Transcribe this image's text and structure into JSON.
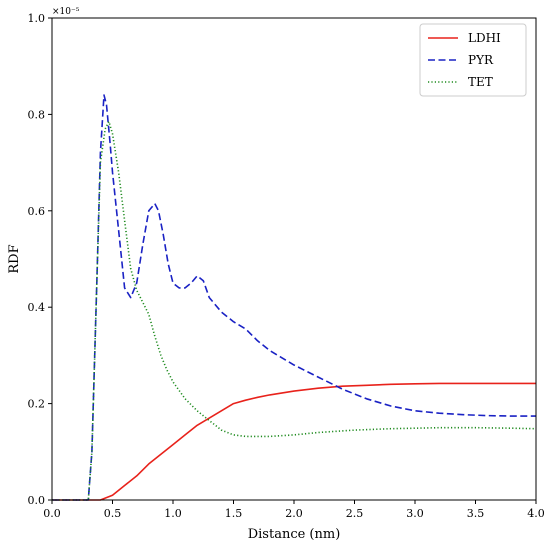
{
  "chart_data": {
    "type": "line",
    "xlabel": "Distance (nm)",
    "ylabel": "RDF",
    "y_multiplier": "×10⁻⁵",
    "xlim": [
      0,
      4.0
    ],
    "ylim": [
      0,
      1.0
    ],
    "xticks": [
      "0.0",
      "0.5",
      "1.0",
      "1.5",
      "2.0",
      "2.5",
      "3.0",
      "3.5",
      "4.0"
    ],
    "yticks": [
      "0.0",
      "0.2",
      "0.4",
      "0.6",
      "0.8",
      "1.0"
    ],
    "legend_position": "top-right",
    "grid": false,
    "series": [
      {
        "name": "LDHI",
        "color": "#e8221b",
        "style": "solid",
        "x": [
          0.0,
          0.3,
          0.4,
          0.5,
          0.6,
          0.7,
          0.8,
          0.9,
          1.0,
          1.1,
          1.2,
          1.3,
          1.4,
          1.5,
          1.6,
          1.7,
          1.8,
          2.0,
          2.2,
          2.4,
          2.6,
          2.8,
          3.0,
          3.2,
          3.4,
          3.6,
          3.8,
          4.0
        ],
        "y": [
          0.0,
          0.0,
          0.0,
          0.01,
          0.03,
          0.05,
          0.075,
          0.095,
          0.115,
          0.135,
          0.155,
          0.17,
          0.185,
          0.2,
          0.207,
          0.213,
          0.218,
          0.226,
          0.232,
          0.236,
          0.238,
          0.24,
          0.241,
          0.242,
          0.242,
          0.242,
          0.242,
          0.242
        ]
      },
      {
        "name": "PYR",
        "color": "#1a22c4",
        "style": "dashed",
        "x": [
          0.0,
          0.3,
          0.33,
          0.37,
          0.4,
          0.43,
          0.45,
          0.48,
          0.5,
          0.55,
          0.6,
          0.65,
          0.7,
          0.75,
          0.8,
          0.85,
          0.88,
          0.92,
          0.96,
          1.0,
          1.05,
          1.1,
          1.15,
          1.2,
          1.25,
          1.3,
          1.4,
          1.5,
          1.6,
          1.7,
          1.8,
          1.9,
          2.0,
          2.2,
          2.4,
          2.6,
          2.8,
          3.0,
          3.2,
          3.4,
          3.6,
          3.8,
          4.0
        ],
        "y": [
          0.0,
          0.0,
          0.1,
          0.45,
          0.72,
          0.84,
          0.82,
          0.74,
          0.68,
          0.56,
          0.44,
          0.42,
          0.45,
          0.53,
          0.6,
          0.615,
          0.6,
          0.55,
          0.49,
          0.45,
          0.44,
          0.44,
          0.45,
          0.465,
          0.455,
          0.42,
          0.39,
          0.37,
          0.355,
          0.33,
          0.31,
          0.295,
          0.28,
          0.255,
          0.23,
          0.21,
          0.195,
          0.185,
          0.18,
          0.177,
          0.175,
          0.174,
          0.174
        ]
      },
      {
        "name": "TET",
        "color": "#1d8a1d",
        "style": "dotted",
        "x": [
          0.0,
          0.3,
          0.33,
          0.37,
          0.4,
          0.44,
          0.47,
          0.5,
          0.55,
          0.6,
          0.65,
          0.7,
          0.75,
          0.8,
          0.85,
          0.9,
          0.95,
          1.0,
          1.1,
          1.2,
          1.3,
          1.4,
          1.5,
          1.6,
          1.7,
          1.8,
          2.0,
          2.2,
          2.5,
          2.8,
          3.0,
          3.2,
          3.5,
          3.8,
          4.0
        ],
        "y": [
          0.0,
          0.0,
          0.1,
          0.45,
          0.7,
          0.77,
          0.785,
          0.76,
          0.68,
          0.58,
          0.48,
          0.435,
          0.41,
          0.385,
          0.34,
          0.3,
          0.27,
          0.245,
          0.21,
          0.185,
          0.165,
          0.145,
          0.135,
          0.132,
          0.132,
          0.132,
          0.135,
          0.14,
          0.145,
          0.148,
          0.149,
          0.15,
          0.15,
          0.149,
          0.148
        ]
      }
    ]
  }
}
